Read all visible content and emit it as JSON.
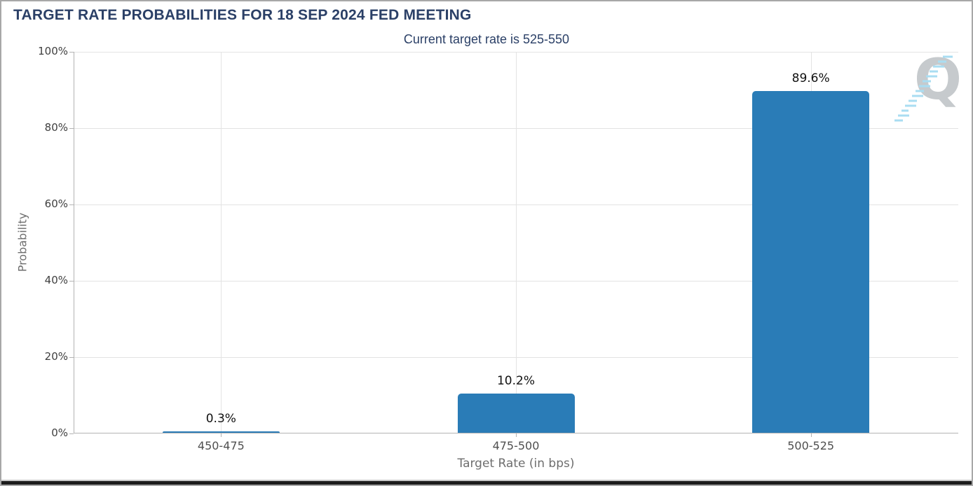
{
  "header": {
    "title": "TARGET RATE PROBABILITIES FOR 18 SEP 2024 FED MEETING",
    "subtitle": "Current target rate is 525-550"
  },
  "chart_data": {
    "type": "bar",
    "title": "Current target rate is 525-550",
    "categories": [
      "450-475",
      "475-500",
      "500-525"
    ],
    "values": [
      0.3,
      10.2,
      89.6
    ],
    "value_labels": [
      "0.3%",
      "10.2%",
      "89.6%"
    ],
    "xlabel": "Target Rate (in bps)",
    "ylabel": "Probability",
    "ylim": [
      0,
      100
    ],
    "yticks": [
      0,
      20,
      40,
      60,
      80,
      100
    ],
    "ytick_labels": [
      "0%",
      "20%",
      "40%",
      "60%",
      "80%",
      "100%"
    ],
    "grid": true,
    "legend": "none",
    "bar_color": "#2a7cb7"
  },
  "logo": {
    "letter": "Q"
  },
  "colors": {
    "heading": "#2b4067",
    "bar": "#2a7cb7",
    "axis_line": "#b3b3b3",
    "gridline": "#e3e3e3",
    "ytick_text": "#3f3f3f",
    "xtick_text": "#4f4f4f",
    "axis_title_text": "#6e6e6e",
    "value_text": "#111111",
    "logo_gray": "#c6cacd",
    "logo_streak_blue": "#a9ddf2",
    "frame_border": "#a8a8a8",
    "window_bottom": "#1c1c1c"
  }
}
